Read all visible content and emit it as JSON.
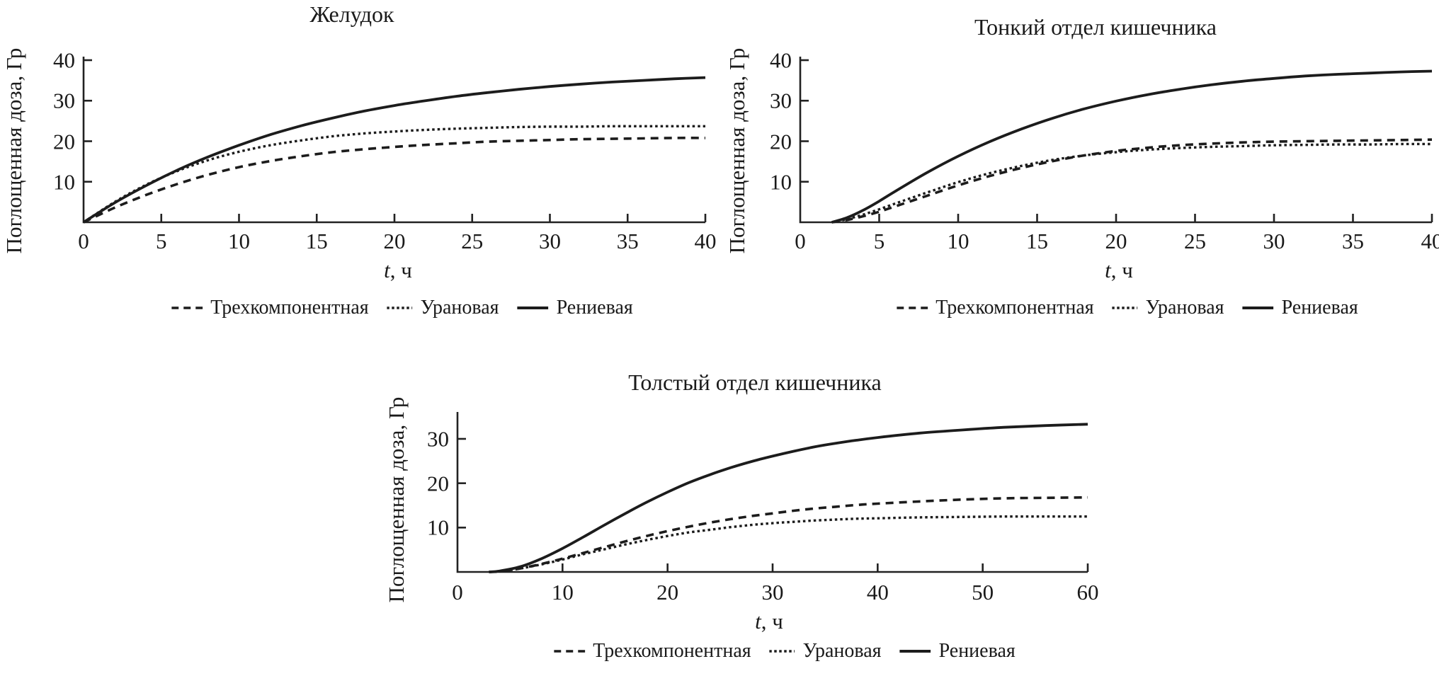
{
  "page": {
    "background": "#ffffff",
    "text_color": "#1a1a1a",
    "curve_color": "#1c1c1c",
    "axis_color": "#222222"
  },
  "chart_data": [
    {
      "type": "line",
      "title": "Желудок",
      "ylabel": "Поглощенная доза, Гр",
      "xlabel": {
        "italic": "t",
        "rest": ", ч"
      },
      "xlim": [
        0,
        40
      ],
      "ylim": [
        0,
        41
      ],
      "xticks": [
        0,
        5,
        10,
        15,
        20,
        25,
        30,
        35,
        40
      ],
      "yticks": [
        10,
        20,
        30,
        40
      ],
      "grid": false,
      "legend_position": "below",
      "series": [
        {
          "name": "Трехкомпонентная",
          "style": "dashed",
          "x": [
            0,
            2,
            4,
            6,
            8,
            10,
            12,
            14,
            16,
            18,
            20,
            22,
            24,
            26,
            28,
            30,
            32,
            34,
            36,
            38,
            40
          ],
          "y": [
            0,
            3.6,
            6.7,
            9.4,
            11.7,
            13.6,
            15.1,
            16.3,
            17.3,
            18.0,
            18.6,
            19.1,
            19.5,
            19.9,
            20.1,
            20.3,
            20.5,
            20.6,
            20.7,
            20.8,
            20.8
          ]
        },
        {
          "name": "Урановая",
          "style": "dotted",
          "x": [
            0,
            2,
            4,
            6,
            8,
            10,
            12,
            14,
            16,
            18,
            20,
            22,
            24,
            26,
            28,
            30,
            32,
            34,
            36,
            38,
            40
          ],
          "y": [
            0,
            5.0,
            9.2,
            12.6,
            15.3,
            17.4,
            19.0,
            20.2,
            21.2,
            21.9,
            22.4,
            22.8,
            23.1,
            23.3,
            23.5,
            23.6,
            23.6,
            23.7,
            23.7,
            23.7,
            23.7
          ]
        },
        {
          "name": "Рениевая",
          "style": "solid",
          "x": [
            0,
            2,
            4,
            6,
            8,
            10,
            12,
            14,
            16,
            18,
            20,
            22,
            24,
            26,
            28,
            30,
            32,
            34,
            36,
            38,
            40
          ],
          "y": [
            0,
            4.8,
            9.0,
            12.8,
            16.1,
            19.0,
            21.6,
            23.8,
            25.7,
            27.4,
            28.8,
            30.0,
            31.1,
            32.0,
            32.8,
            33.5,
            34.1,
            34.6,
            35.0,
            35.4,
            35.7
          ]
        }
      ]
    },
    {
      "type": "line",
      "title": "Тонкий отдел кишечника",
      "ylabel": "Поглощенная доза, Гр",
      "xlabel": {
        "italic": "t",
        "rest": ", ч"
      },
      "xlim": [
        0,
        40
      ],
      "ylim": [
        0,
        41
      ],
      "xticks": [
        0,
        5,
        10,
        15,
        20,
        25,
        30,
        35,
        40
      ],
      "yticks": [
        10,
        20,
        30,
        40
      ],
      "grid": false,
      "legend_position": "below",
      "series": [
        {
          "name": "Трехкомпонентная",
          "style": "dashed",
          "x": [
            2,
            3,
            4,
            5,
            6,
            8,
            10,
            12,
            14,
            16,
            18,
            20,
            22,
            24,
            26,
            28,
            30,
            32,
            34,
            36,
            38,
            40
          ],
          "y": [
            0,
            0.6,
            1.5,
            2.6,
            3.9,
            6.5,
            9.1,
            11.4,
            13.4,
            15.1,
            16.5,
            17.6,
            18.4,
            19.0,
            19.4,
            19.7,
            19.9,
            20.0,
            20.1,
            20.2,
            20.3,
            20.4
          ]
        },
        {
          "name": "Урановая",
          "style": "dotted",
          "x": [
            2,
            3,
            4,
            5,
            6,
            8,
            10,
            12,
            14,
            16,
            18,
            20,
            22,
            24,
            26,
            28,
            30,
            32,
            34,
            36,
            38,
            40
          ],
          "y": [
            0,
            0.8,
            1.9,
            3.2,
            4.6,
            7.3,
            9.9,
            12.1,
            13.9,
            15.4,
            16.5,
            17.3,
            17.9,
            18.3,
            18.6,
            18.8,
            19.0,
            19.1,
            19.2,
            19.2,
            19.3,
            19.3
          ]
        },
        {
          "name": "Рениевая",
          "style": "solid",
          "x": [
            2,
            3,
            4,
            5,
            6,
            8,
            10,
            12,
            14,
            16,
            18,
            20,
            22,
            24,
            26,
            28,
            30,
            32,
            34,
            36,
            38,
            40
          ],
          "y": [
            0,
            1.2,
            3.0,
            5.2,
            7.6,
            12.2,
            16.3,
            19.9,
            23.0,
            25.7,
            28.0,
            29.9,
            31.5,
            32.8,
            33.9,
            34.8,
            35.5,
            36.1,
            36.5,
            36.8,
            37.1,
            37.3
          ]
        }
      ]
    },
    {
      "type": "line",
      "title": "Толстый отдел кишечника",
      "ylabel": "Поглощенная доза, Гр",
      "xlabel": {
        "italic": "t",
        "rest": ", ч"
      },
      "xlim": [
        0,
        60
      ],
      "ylim": [
        0,
        36
      ],
      "xticks": [
        0,
        10,
        20,
        30,
        40,
        50,
        60
      ],
      "yticks": [
        10,
        20,
        30
      ],
      "grid": false,
      "legend_position": "below",
      "series": [
        {
          "name": "Трехкомпонентная",
          "style": "dashed",
          "x": [
            3,
            4,
            6,
            8,
            10,
            12,
            14,
            16,
            18,
            20,
            22,
            24,
            26,
            28,
            30,
            32,
            34,
            36,
            38,
            40,
            44,
            48,
            52,
            56,
            60
          ],
          "y": [
            0,
            0.1,
            0.8,
            1.8,
            3.0,
            4.3,
            5.6,
            6.9,
            8.1,
            9.2,
            10.2,
            11.1,
            11.9,
            12.6,
            13.2,
            13.8,
            14.3,
            14.7,
            15.1,
            15.4,
            15.9,
            16.3,
            16.6,
            16.7,
            16.8
          ]
        },
        {
          "name": "Урановая",
          "style": "dotted",
          "x": [
            3,
            4,
            6,
            8,
            10,
            12,
            14,
            16,
            18,
            20,
            22,
            24,
            26,
            28,
            30,
            32,
            34,
            36,
            38,
            40,
            44,
            48,
            52,
            56,
            60
          ],
          "y": [
            0,
            0.1,
            0.8,
            1.7,
            2.8,
            4.0,
            5.1,
            6.2,
            7.2,
            8.1,
            8.9,
            9.5,
            10.1,
            10.6,
            11.0,
            11.3,
            11.6,
            11.8,
            12.0,
            12.1,
            12.3,
            12.4,
            12.5,
            12.5,
            12.5
          ]
        },
        {
          "name": "Рениевая",
          "style": "solid",
          "x": [
            3,
            4,
            6,
            8,
            10,
            12,
            14,
            16,
            18,
            20,
            22,
            24,
            26,
            28,
            30,
            32,
            34,
            36,
            38,
            40,
            44,
            48,
            52,
            56,
            60
          ],
          "y": [
            0,
            0.2,
            1.2,
            3.0,
            5.3,
            7.9,
            10.6,
            13.2,
            15.7,
            18.0,
            20.1,
            21.9,
            23.5,
            24.9,
            26.1,
            27.2,
            28.2,
            29.0,
            29.7,
            30.3,
            31.3,
            32.0,
            32.6,
            33.0,
            33.3
          ]
        }
      ]
    }
  ]
}
